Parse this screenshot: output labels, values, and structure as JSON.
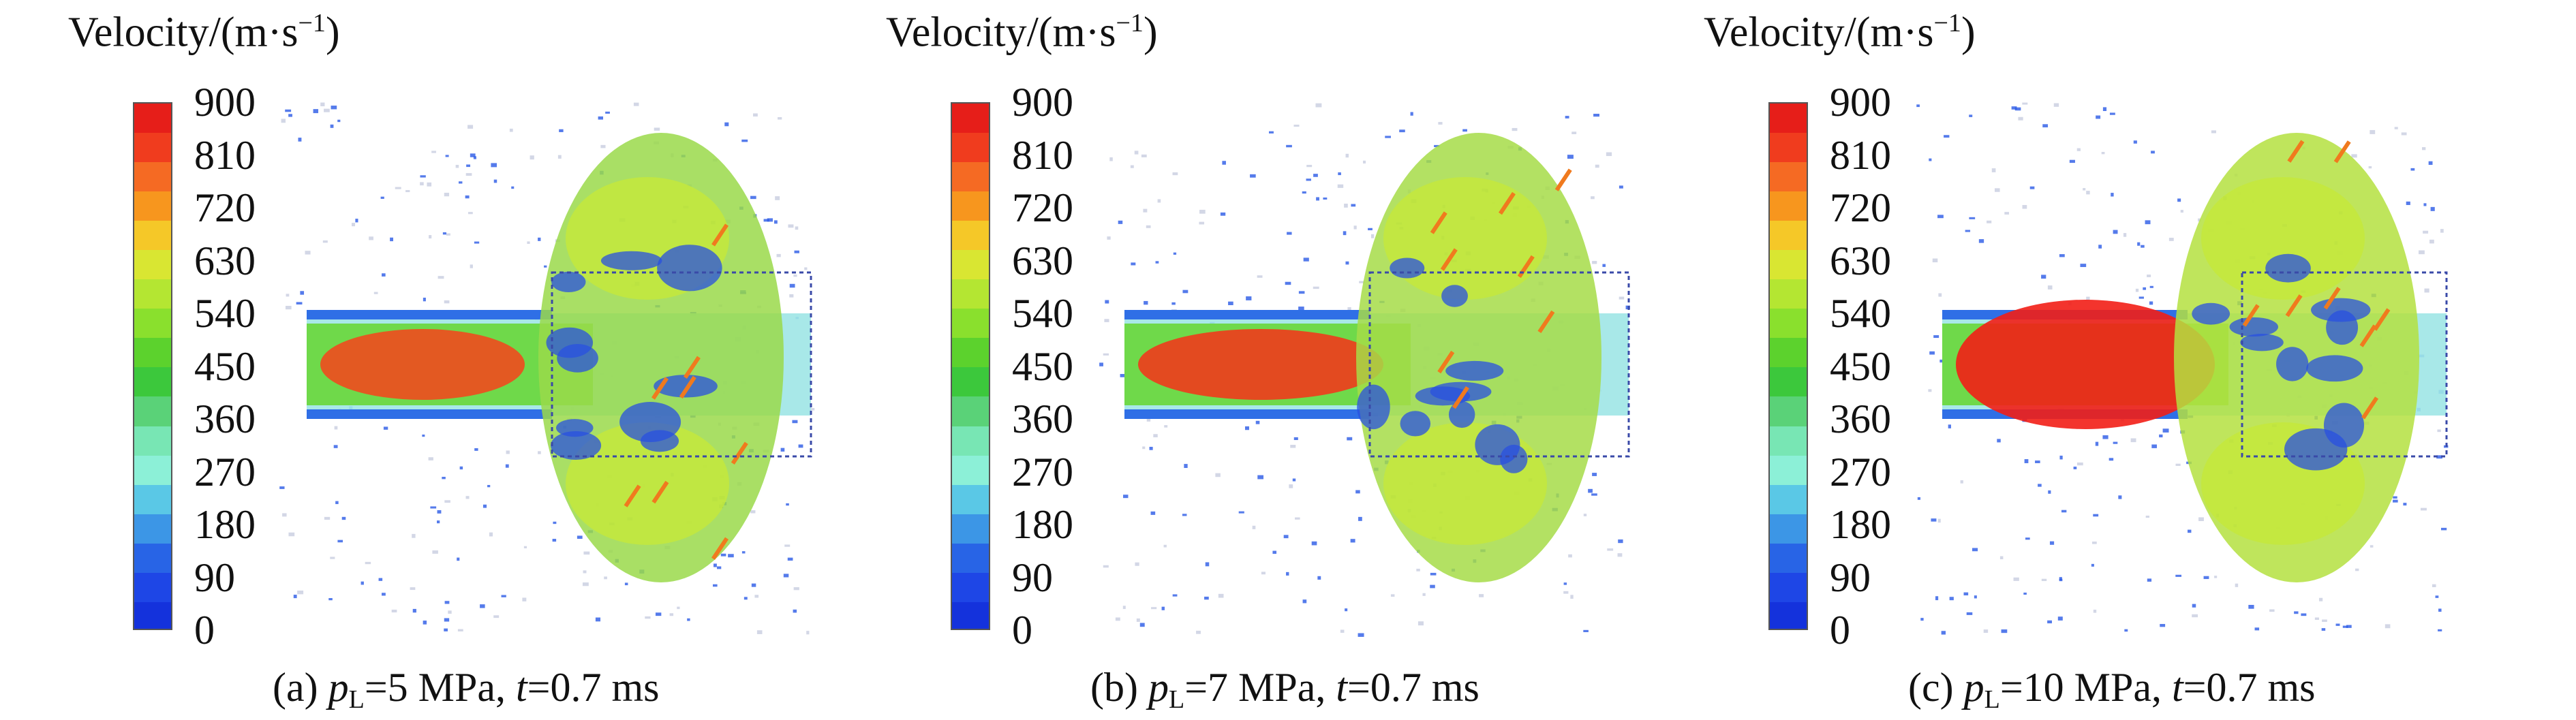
{
  "legend": {
    "title": "Velocity/(m·s",
    "title_sup": "−1",
    "title_close": ")",
    "ticks": [
      "900",
      "810",
      "720",
      "630",
      "540",
      "450",
      "360",
      "270",
      "180",
      "90",
      "0"
    ],
    "band_colors": [
      "#e61e19",
      "#f03c1e",
      "#f56a23",
      "#f7961e",
      "#f5c828",
      "#d9e632",
      "#b4e632",
      "#8ae02d",
      "#5cd22d",
      "#3cc83c",
      "#5ad278",
      "#78e6b4",
      "#8cf0d7",
      "#5ac8e6",
      "#3c96e6",
      "#2864e6",
      "#1e46e6",
      "#1432dc"
    ]
  },
  "panels": [
    {
      "id": "a",
      "caption_prefix": "(a) ",
      "p_symbol": "p",
      "p_sub": "L",
      "p_value": "=5 MPa, ",
      "t_symbol": "t",
      "t_value": "=0.7 ms",
      "core_color": "#f04a1e",
      "front_color": "#9ad94a"
    },
    {
      "id": "b",
      "caption_prefix": "(b) ",
      "p_symbol": "p",
      "p_sub": "L",
      "p_value": "=7 MPa, ",
      "t_symbol": "t",
      "t_value": "=0.7 ms",
      "core_color": "#f03a1c",
      "front_color": "#a6dc48"
    },
    {
      "id": "c",
      "caption_prefix": "(c) ",
      "p_symbol": "p",
      "p_sub": "L",
      "p_value": "=10 MPa, ",
      "t_symbol": "t",
      "t_value": "=0.7 ms",
      "core_color": "#f21e16",
      "front_color": "#b4e040"
    }
  ]
}
